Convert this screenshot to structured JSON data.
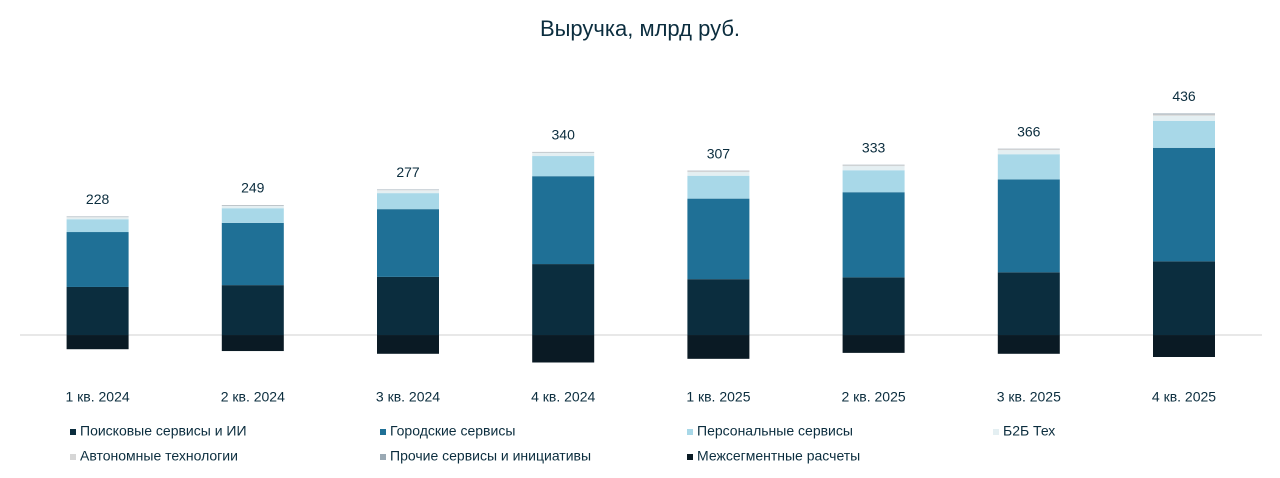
{
  "chart_data": {
    "type": "stacked_bar",
    "title": "Выручка, млрд руб.",
    "categories": [
      "1 кв. 2024",
      "2 кв. 2024",
      "3 кв. 2024",
      "4 кв. 2024",
      "1 кв. 2025",
      "2 кв. 2025",
      "3 кв. 2025",
      "4 кв. 2025"
    ],
    "totals": [
      228,
      249,
      277,
      340,
      307,
      333,
      366,
      436
    ],
    "ylim": [
      -100,
      520
    ],
    "series": [
      {
        "name": "Поисковые сервисы и ИИ",
        "color": "#0b2d3e",
        "values": [
          105,
          109,
          127,
          155,
          122,
          126,
          137,
          161
        ]
      },
      {
        "name": "Городские сервисы",
        "color": "#1f7096",
        "values": [
          120,
          136,
          148,
          192,
          176,
          186,
          203,
          248
        ]
      },
      {
        "name": "Персональные сервисы",
        "color": "#a8d8e8",
        "values": [
          28,
          32,
          35,
          44,
          50,
          48,
          55,
          59
        ]
      },
      {
        "name": "Б2Б Тех",
        "color": "#e4eff2",
        "values": [
          4,
          5,
          6,
          7,
          8,
          9,
          9,
          11
        ]
      },
      {
        "name": "Автономные технологии",
        "color": "#d6d6d6",
        "values": [
          1,
          1,
          1,
          1,
          2,
          2,
          2,
          3
        ]
      },
      {
        "name": "Прочие сервисы и инициативы",
        "color": "#9aa9b4",
        "values": [
          1,
          1,
          1,
          1,
          1,
          1,
          1,
          2
        ]
      },
      {
        "name": "Межсегментные расчеты",
        "color": "#0a1a24",
        "values": [
          -31,
          -35,
          -41,
          -60,
          -52,
          -39,
          -41,
          -48
        ]
      }
    ]
  }
}
